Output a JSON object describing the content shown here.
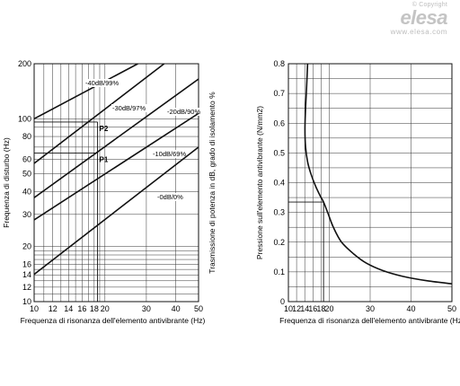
{
  "watermark": {
    "copyright": "© Copyright",
    "logo": "elesa",
    "url": "www.elesa.com"
  },
  "chart_data": [
    {
      "type": "line",
      "xlabel": "Frequenza di risonanza dell'elemento antivibrante (Hz)",
      "ylabel": "Frequenza di disturbo (Hz)",
      "ylabel_right": "Trasmissione di potenza in dB, grado di isolamento %",
      "x_scale": "log",
      "y_scale": "log",
      "xlim": [
        10,
        50
      ],
      "ylim": [
        10,
        200
      ],
      "x_ticks": [
        10,
        12,
        14,
        16,
        18,
        20,
        30,
        40,
        50
      ],
      "x_tick_labels": [
        "10",
        "12",
        "14",
        "16",
        "18",
        "20",
        "30",
        "40",
        "50"
      ],
      "y_ticks": [
        10,
        12,
        14,
        16,
        20,
        30,
        40,
        50,
        60,
        80,
        100,
        200
      ],
      "y_tick_labels": [
        "10",
        "12",
        "14",
        "16",
        "20",
        "30",
        "40",
        "50",
        "60",
        "80",
        "100",
        "200"
      ],
      "series": [
        {
          "name": "-40dB/99%",
          "x": [
            10,
            27.6
          ],
          "y": [
            100,
            200
          ]
        },
        {
          "name": "-30dB/97%",
          "x": [
            10,
            35.7
          ],
          "y": [
            57,
            200
          ]
        },
        {
          "name": "-20dB/90%",
          "x": [
            10,
            50
          ],
          "y": [
            37,
            165
          ]
        },
        {
          "name": "-10dB/69%",
          "x": [
            10,
            50
          ],
          "y": [
            28,
            107
          ]
        },
        {
          "name": "-0dB/0%",
          "x": [
            10,
            50
          ],
          "y": [
            14.1,
            70
          ]
        }
      ],
      "points": [
        {
          "name": "P2",
          "x": 18.6,
          "y": 96
        },
        {
          "name": "P1",
          "x": 18.6,
          "y": 65
        }
      ]
    },
    {
      "type": "line",
      "xlabel": "Frequenza di risonanza dell'elemento antivibrante (Hz)",
      "ylabel": "Pressione sull'elemento antivibrante (N/mm2)",
      "xlim": [
        10,
        50
      ],
      "ylim": [
        0,
        0.8
      ],
      "x_ticks": [
        10,
        12,
        14,
        16,
        18,
        20,
        30,
        40,
        50
      ],
      "x_tick_labels": [
        "10",
        "12",
        "14",
        "16",
        "18",
        "20",
        "30",
        "40",
        "50"
      ],
      "y_ticks": [
        0,
        0.1,
        0.2,
        0.3,
        0.4,
        0.5,
        0.6,
        0.7,
        0.8
      ],
      "y_tick_labels": [
        "0",
        "0.1",
        "0.2",
        "0.3",
        "0.4",
        "0.5",
        "0.6",
        "0.7",
        "0.8"
      ],
      "series": [
        {
          "x": [
            14.7,
            14.45,
            14.2,
            14.05,
            14.2,
            14.7,
            15.5,
            16.6,
            17.8,
            18.6,
            19.6,
            21,
            23,
            26,
            29,
            33,
            38,
            44,
            50
          ],
          "y": [
            0.8,
            0.72,
            0.65,
            0.58,
            0.52,
            0.47,
            0.43,
            0.39,
            0.355,
            0.335,
            0.3,
            0.25,
            0.2,
            0.16,
            0.13,
            0.105,
            0.085,
            0.07,
            0.06
          ]
        }
      ],
      "reference": {
        "x": 18.6,
        "y": 0.335
      }
    }
  ]
}
